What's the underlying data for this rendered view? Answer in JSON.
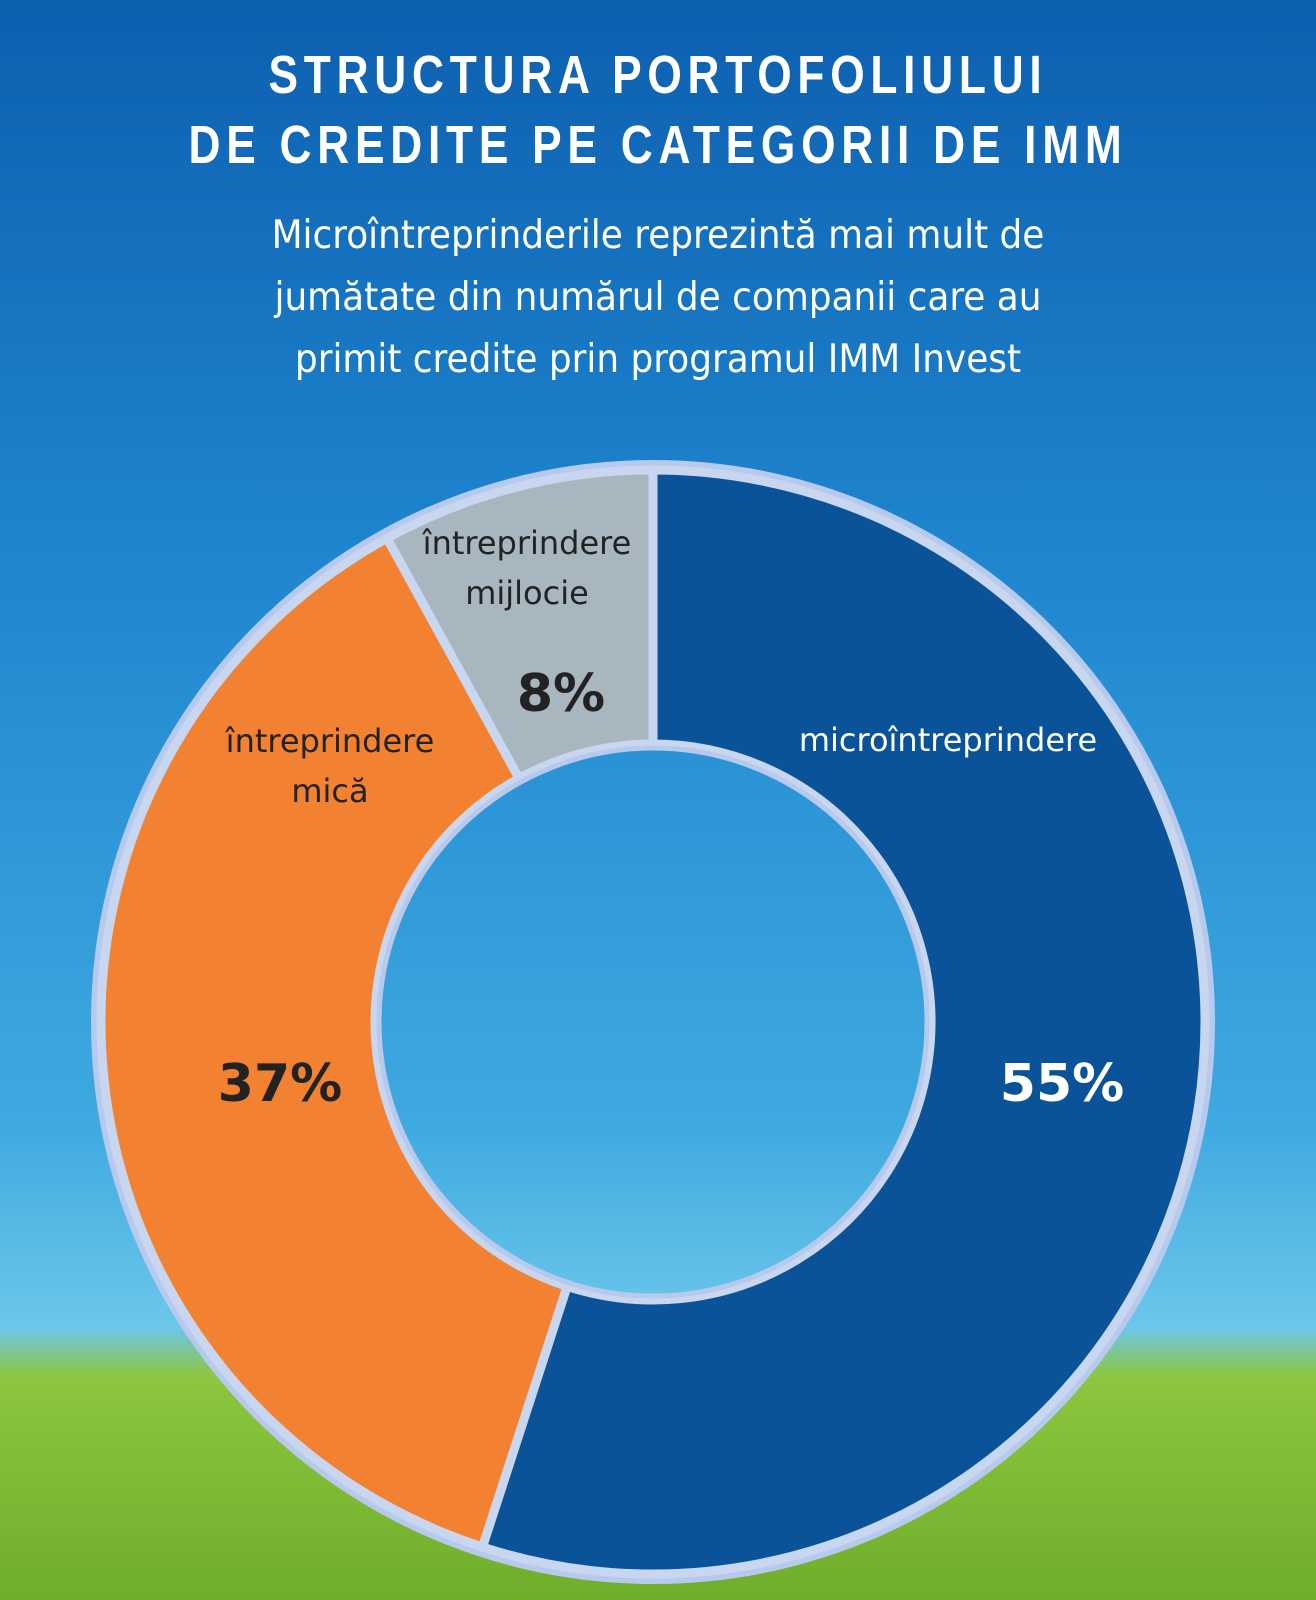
{
  "chart_data": {
    "type": "pie",
    "donut": true,
    "title": [
      "STRUCTURA PORTOFOLIULUI",
      "DE CREDITE PE CATEGORII DE IMM"
    ],
    "subtitle": [
      "Microîntreprinderile reprezintă mai mult de",
      "jumătate din numărul de companii care au",
      "primit credite prin programul IMM Invest"
    ],
    "categories": [
      "microîntreprindere",
      "întreprindere mică",
      "întreprindere mijlocie"
    ],
    "values": [
      55,
      37,
      8
    ],
    "value_labels": [
      "55%",
      "37%",
      "8%"
    ],
    "colors": [
      "#0b5399",
      "#f28131",
      "#a8b6bf"
    ]
  }
}
